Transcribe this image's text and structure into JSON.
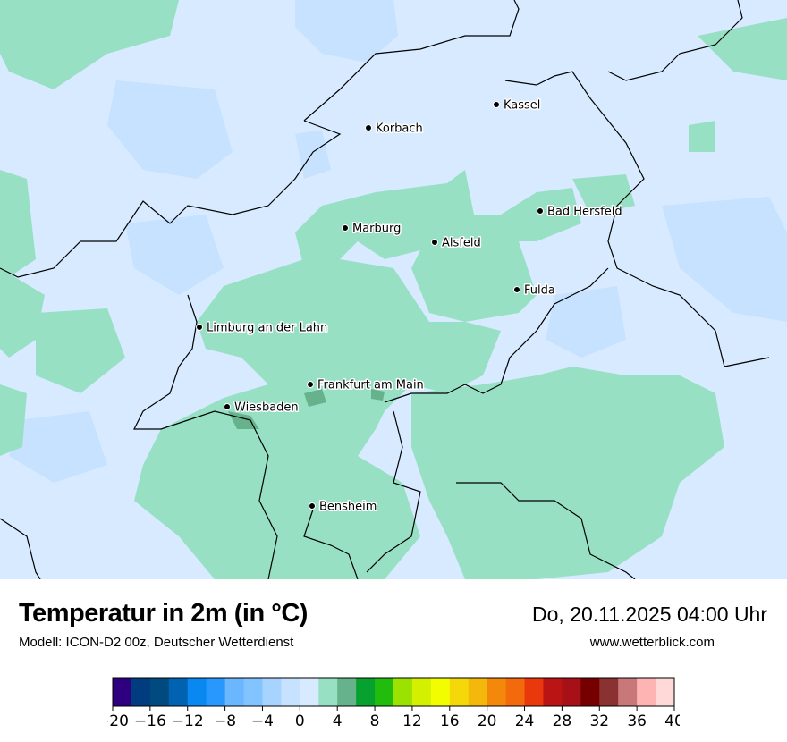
{
  "header": {
    "title": "Temperatur in 2m (in °C)",
    "subtitle": "Modell: ICON-D2 00z, Deutscher Wetterdienst",
    "datetime": "Do, 20.11.2025 04:00 Uhr",
    "website": "www.wetterblick.com"
  },
  "map": {
    "background_color": "#d8eaff",
    "cities": [
      {
        "name": "Kassel"
      },
      {
        "name": "Korbach"
      },
      {
        "name": "Bad Hersfeld"
      },
      {
        "name": "Marburg"
      },
      {
        "name": "Alsfeld"
      },
      {
        "name": "Fulda"
      },
      {
        "name": "Limburg an der Lahn"
      },
      {
        "name": "Frankfurt am Main"
      },
      {
        "name": "Wiesbaden"
      },
      {
        "name": "Bensheim"
      }
    ]
  },
  "legend": {
    "min": -20,
    "max": 40,
    "step": 2,
    "tick_labels": [
      "−20",
      "−16",
      "−12",
      "−8",
      "−4",
      "0",
      "4",
      "8",
      "12",
      "16",
      "20",
      "24",
      "28",
      "32",
      "36",
      "40"
    ],
    "colors": [
      "#2e0080",
      "#003c7e",
      "#004a80",
      "#0062b0",
      "#0888f0",
      "#2898ff",
      "#6ab6ff",
      "#82c4ff",
      "#a6d4ff",
      "#c6e2ff",
      "#d8eaff",
      "#98e0c4",
      "#66b28c",
      "#06a12e",
      "#22bc0e",
      "#9ce200",
      "#d2f000",
      "#f2fe00",
      "#f4d80a",
      "#f4b80c",
      "#f4880a",
      "#f26a0c",
      "#e8380c",
      "#ba1414",
      "#a81018",
      "#760000",
      "#8a3232",
      "#c87878",
      "#ffb4b4",
      "#ffd8d8"
    ]
  }
}
